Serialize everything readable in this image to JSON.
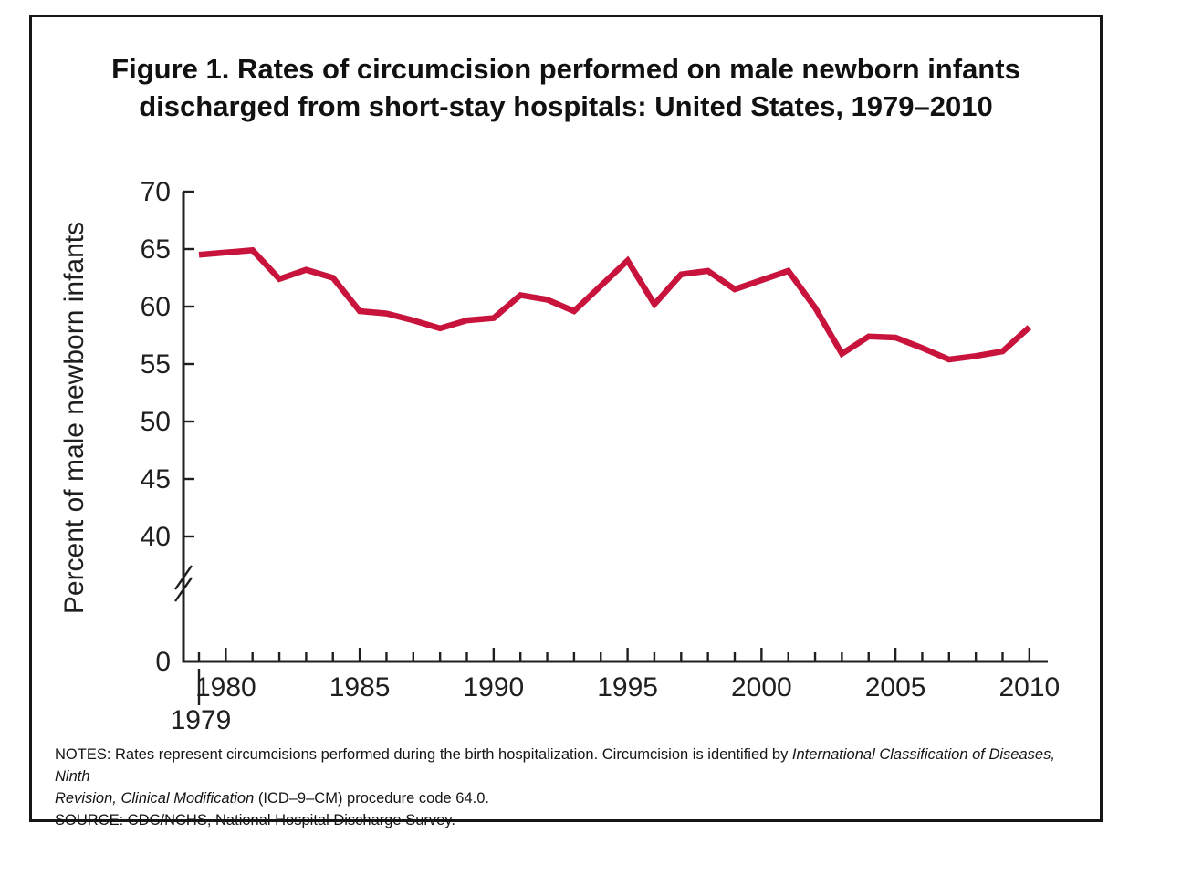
{
  "figure": {
    "title_line1": "Figure 1. Rates of circumcision performed on male newborn infants",
    "title_line2": "discharged from short-stay hospitals: United States, 1979–2010"
  },
  "notes": {
    "line1_regular": "NOTES: Rates represent circumcisions performed during the birth hospitalization. Circumcision is identified by ",
    "line1_italic": "International Classification of Diseases, Ninth",
    "line2_italic": "Revision, Clinical Modification",
    "line2_regular": " (ICD–9–CM) procedure code 64.0.",
    "source": "SOURCE: CDC/NCHS, National Hospital Discharge Survey."
  },
  "chart_data": {
    "type": "line",
    "title": "Figure 1. Rates of circumcision performed on male newborn infants discharged from short-stay hospitals: United States, 1979–2010",
    "xlabel": "",
    "ylabel": "Percent of male newborn infants",
    "x": [
      1979,
      1980,
      1981,
      1982,
      1983,
      1984,
      1985,
      1986,
      1987,
      1988,
      1989,
      1990,
      1991,
      1992,
      1993,
      1994,
      1995,
      1996,
      1997,
      1998,
      1999,
      2000,
      2001,
      2002,
      2003,
      2004,
      2005,
      2006,
      2007,
      2008,
      2009,
      2010
    ],
    "series": [
      {
        "name": "Percent of male newborn infants circumcised",
        "values": [
          64.5,
          64.7,
          64.9,
          62.4,
          63.2,
          62.5,
          59.6,
          59.4,
          58.8,
          58.1,
          58.8,
          59.0,
          61.0,
          60.6,
          59.6,
          61.8,
          64.0,
          60.2,
          62.8,
          63.1,
          61.5,
          62.3,
          63.1,
          59.9,
          55.9,
          57.4,
          57.3,
          56.4,
          55.4,
          55.7,
          56.1,
          58.2
        ]
      }
    ],
    "ylim": [
      0,
      70
    ],
    "y_ticks": [
      70,
      65,
      60,
      55,
      50,
      45,
      40,
      0
    ],
    "y_axis_break_between": [
      0,
      40
    ],
    "x_tick_labels": [
      1979,
      1980,
      1985,
      1990,
      1995,
      2000,
      2005,
      2010
    ],
    "x_minor_tick_step": 1,
    "grid": false,
    "legend": "none",
    "line_color": "#C8143C",
    "axis_color": "#1f1f1f"
  }
}
